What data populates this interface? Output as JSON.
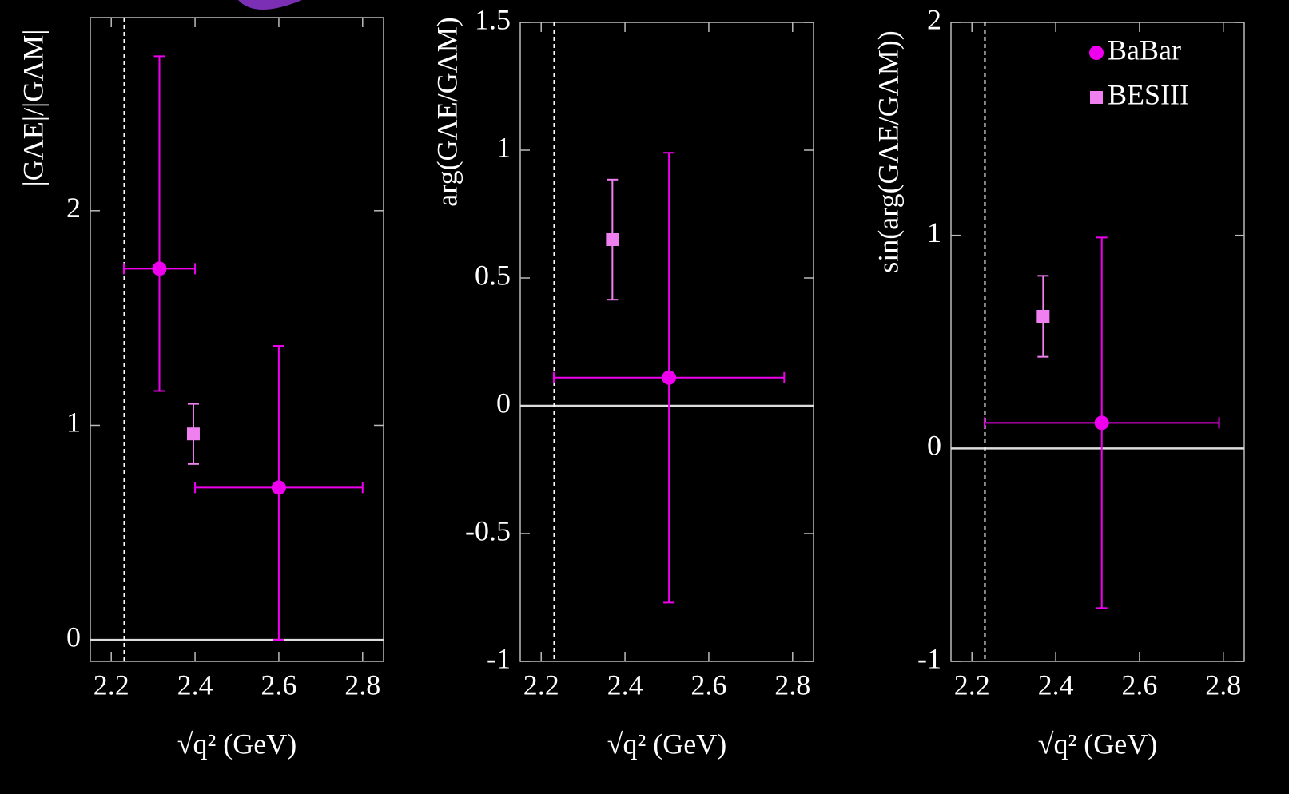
{
  "chart_data": [
    {
      "type": "errorbar",
      "ylabel": "|GΛE|/|GΛM|",
      "xlabel": "√q² (GeV)",
      "xlim": [
        2.15,
        2.85
      ],
      "xticks": [
        2.2,
        2.4,
        2.6,
        2.8
      ],
      "ylim": [
        -0.1,
        2.9
      ],
      "yticks": [
        0,
        1,
        2
      ],
      "vlines": [
        2.231
      ],
      "hlines": [
        0
      ],
      "series": [
        {
          "marker": "circle",
          "color": "#ee00ee",
          "x": [
            2.315,
            2.6
          ],
          "values": [
            1.73,
            0.71
          ],
          "xerr": [
            0.085,
            0.2
          ],
          "yerr_minus": [
            0.57,
            0.71
          ],
          "yerr_plus": [
            0.99,
            0.66
          ]
        },
        {
          "marker": "square",
          "color": "#f080f0",
          "x": [
            2.396
          ],
          "values": [
            0.96
          ],
          "yerr_minus": [
            0.14
          ],
          "yerr_plus": [
            0.14
          ]
        }
      ]
    },
    {
      "type": "errorbar",
      "ylabel": "arg(GΛE/GΛM)",
      "xlabel": "√q² (GeV)",
      "xlim": [
        2.15,
        2.85
      ],
      "xticks": [
        2.2,
        2.4,
        2.6,
        2.8
      ],
      "ylim": [
        -1,
        1.5
      ],
      "yticks": [
        -1,
        -0.5,
        0,
        0.5,
        1,
        1.5
      ],
      "vlines": [
        2.231
      ],
      "hlines": [
        0
      ],
      "series": [
        {
          "marker": "circle",
          "color": "#ee00ee",
          "x": [
            2.505
          ],
          "values": [
            0.11
          ],
          "xerr": [
            0.275
          ],
          "yerr_minus": [
            0.88
          ],
          "yerr_plus": [
            0.88
          ]
        },
        {
          "marker": "square",
          "color": "#f080f0",
          "x": [
            2.37
          ],
          "values": [
            0.65
          ],
          "yerr_minus": [
            0.235
          ],
          "yerr_plus": [
            0.235
          ]
        }
      ]
    },
    {
      "type": "errorbar",
      "ylabel": "sin(arg(GΛE/GΛM))",
      "xlabel": "√q² (GeV)",
      "xlim": [
        2.15,
        2.85
      ],
      "xticks": [
        2.2,
        2.4,
        2.6,
        2.8
      ],
      "ylim": [
        -1,
        2
      ],
      "yticks": [
        -1,
        0,
        1,
        2
      ],
      "vlines": [
        2.231
      ],
      "hlines": [
        0
      ],
      "legend": "upper right",
      "series": [
        {
          "name": "BaBar",
          "marker": "circle",
          "color": "#ee00ee",
          "x": [
            2.51
          ],
          "values": [
            0.12
          ],
          "xerr": [
            0.28
          ],
          "yerr_minus": [
            0.87
          ],
          "yerr_plus": [
            0.87
          ]
        },
        {
          "name": "BESIII",
          "marker": "square",
          "color": "#f080f0",
          "x": [
            2.37
          ],
          "values": [
            0.62
          ],
          "yerr_minus": [
            0.19
          ],
          "yerr_plus": [
            0.19
          ]
        }
      ]
    }
  ]
}
